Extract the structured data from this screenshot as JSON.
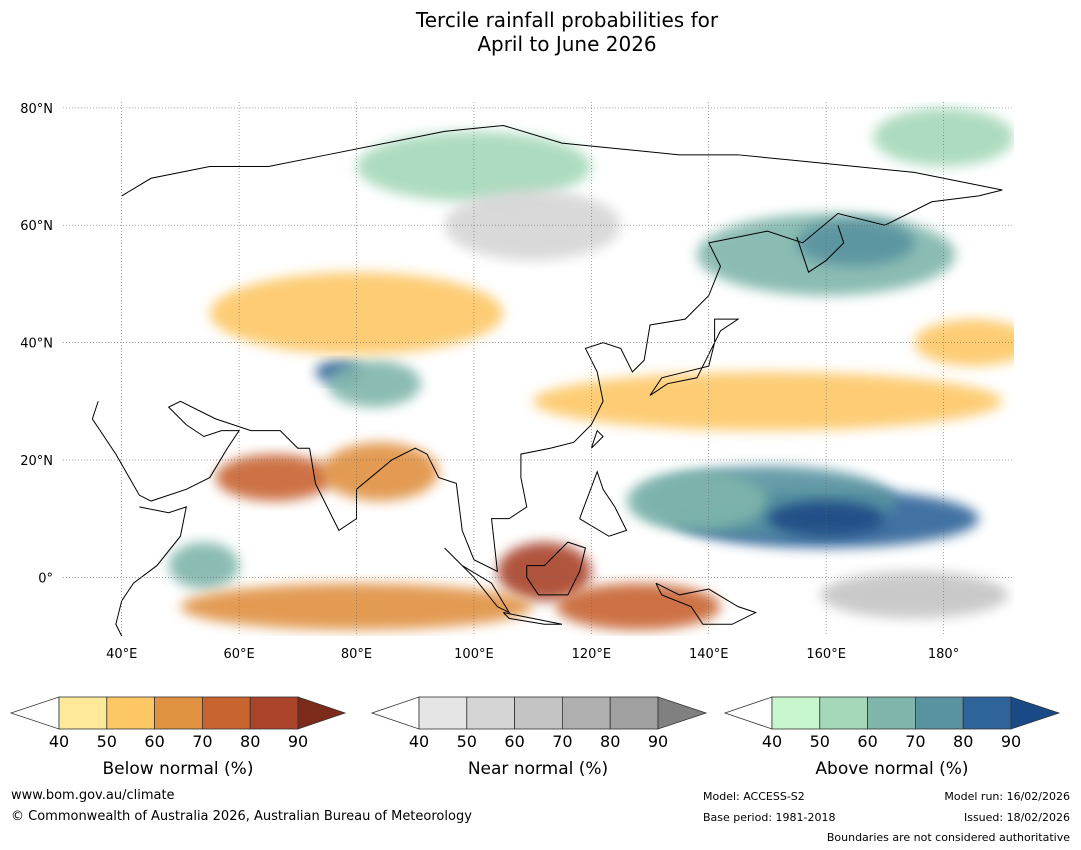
{
  "title": {
    "line1": "Tercile rainfall probabilities for",
    "line2": "April to June 2026"
  },
  "map": {
    "lat_labels": [
      "80°N",
      "60°N",
      "40°N",
      "20°N",
      "0°"
    ],
    "lon_labels": [
      "40°E",
      "60°E",
      "80°E",
      "100°E",
      "120°E",
      "140°E",
      "160°E",
      "180°"
    ],
    "lat_values": [
      80,
      60,
      40,
      20,
      0
    ],
    "lon_values": [
      40,
      60,
      80,
      100,
      120,
      140,
      160,
      180
    ],
    "extent": {
      "lon_min": 30,
      "lon_max": 192,
      "lat_min": -10,
      "lat_max": 81
    },
    "regions": [
      {
        "category": "above",
        "level": 4,
        "lon": 160,
        "lat": 10,
        "rx": 26,
        "ry": 5
      },
      {
        "category": "above",
        "level": 3,
        "lon": 150,
        "lat": 13,
        "rx": 22,
        "ry": 6
      },
      {
        "category": "above",
        "level": 2,
        "lon": 138,
        "lat": 13,
        "rx": 12,
        "ry": 5
      },
      {
        "category": "above",
        "level": 5,
        "lon": 160,
        "lat": 10,
        "rx": 10,
        "ry": 3
      },
      {
        "category": "above",
        "level": 4,
        "lon": 77,
        "lat": 35,
        "rx": 4,
        "ry": 2
      },
      {
        "category": "above",
        "level": 2,
        "lon": 83,
        "lat": 33,
        "rx": 8,
        "ry": 4
      },
      {
        "category": "above",
        "level": 2,
        "lon": 160,
        "lat": 55,
        "rx": 22,
        "ry": 7
      },
      {
        "category": "above",
        "level": 3,
        "lon": 165,
        "lat": 57,
        "rx": 10,
        "ry": 4
      },
      {
        "category": "above",
        "level": 2,
        "lon": 54,
        "lat": 2,
        "rx": 6,
        "ry": 4
      },
      {
        "category": "above",
        "level": 1,
        "lon": 100,
        "lat": 70,
        "rx": 20,
        "ry": 6
      },
      {
        "category": "above",
        "level": 1,
        "lon": 180,
        "lat": 75,
        "rx": 12,
        "ry": 5
      },
      {
        "category": "below",
        "level": 4,
        "lon": 112,
        "lat": 1,
        "rx": 8,
        "ry": 5
      },
      {
        "category": "below",
        "level": 3,
        "lon": 128,
        "lat": -5,
        "rx": 14,
        "ry": 4
      },
      {
        "category": "below",
        "level": 2,
        "lon": 80,
        "lat": -5,
        "rx": 30,
        "ry": 4
      },
      {
        "category": "below",
        "level": 3,
        "lon": 66,
        "lat": 17,
        "rx": 10,
        "ry": 4
      },
      {
        "category": "below",
        "level": 2,
        "lon": 84,
        "lat": 18,
        "rx": 10,
        "ry": 5
      },
      {
        "category": "below",
        "level": 1,
        "lon": 150,
        "lat": 30,
        "rx": 40,
        "ry": 5
      },
      {
        "category": "below",
        "level": 1,
        "lon": 80,
        "lat": 45,
        "rx": 25,
        "ry": 7
      },
      {
        "category": "below",
        "level": 1,
        "lon": 185,
        "lat": 40,
        "rx": 10,
        "ry": 4
      },
      {
        "category": "near",
        "level": 2,
        "lon": 175,
        "lat": -3,
        "rx": 16,
        "ry": 4
      },
      {
        "category": "near",
        "level": 1,
        "lon": 110,
        "lat": 60,
        "rx": 15,
        "ry": 6
      }
    ]
  },
  "legends": [
    {
      "name": "below",
      "label": "Below normal (%)",
      "ticks": [
        "40",
        "50",
        "60",
        "70",
        "80",
        "90"
      ],
      "colors": [
        "#fee99a",
        "#fdc766",
        "#e09142",
        "#c86430",
        "#a9432a",
        "#7c2a1a"
      ]
    },
    {
      "name": "near",
      "label": "Near normal (%)",
      "ticks": [
        "40",
        "50",
        "60",
        "70",
        "80",
        "90"
      ],
      "colors": [
        "#e5e5e5",
        "#d5d5d5",
        "#c4c4c4",
        "#b0b0b0",
        "#a0a0a0",
        "#808080"
      ]
    },
    {
      "name": "above",
      "label": "Above normal (%)",
      "ticks": [
        "40",
        "50",
        "60",
        "70",
        "80",
        "90"
      ],
      "colors": [
        "#c9f7cd",
        "#a5d8b9",
        "#7fb5ab",
        "#5993a0",
        "#2e6499",
        "#1a4a86"
      ]
    }
  ],
  "footer": {
    "site": "www.bom.gov.au/climate",
    "copyright": "© Commonwealth of Australia 2026, Australian Bureau of Meteorology",
    "model": "Model: ACCESS-S2",
    "base_period": "Base period: 1981-2018",
    "model_run": "Model run: 16/02/2026",
    "issued": "Issued: 18/02/2026",
    "disclaimer": "Boundaries are not considered authoritative"
  }
}
